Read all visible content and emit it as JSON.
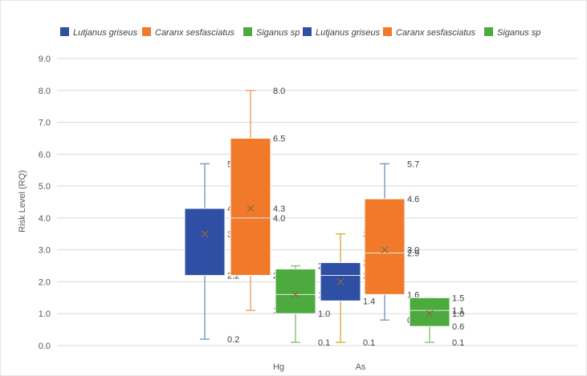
{
  "chart_data": {
    "type": "boxplot",
    "ylabel": "Risk Level (RQ)",
    "xlabel": "",
    "ylim": [
      0,
      9
    ],
    "yticks": [
      0,
      1,
      2,
      3,
      4,
      5,
      6,
      7,
      8,
      9
    ],
    "ytick_labels": [
      "0.0",
      "1.0",
      "2.0",
      "3.0",
      "4.0",
      "5.0",
      "6.0",
      "7.0",
      "8.0",
      "9.0"
    ],
    "categories": [
      "Hg",
      "As"
    ],
    "grid": true,
    "legend_position": "top",
    "legend": [
      {
        "name": "Lutjanus griseus",
        "color": "#2e4fa3"
      },
      {
        "name": "Caranx sesfasciatus",
        "color": "#f07a2a"
      },
      {
        "name": "Siganus sp",
        "color": "#4caa3e"
      },
      {
        "name": "Lutjanus griseus",
        "color": "#2e4fa3"
      },
      {
        "name": "Caranx sesfasciatus",
        "color": "#f07a2a"
      },
      {
        "name": "Siganus sp",
        "color": "#4caa3e"
      }
    ],
    "boxes": [
      {
        "category": "Hg",
        "series": "Lutjanus griseus",
        "color": "#2e4fa3",
        "whisker_color": "#7f9fc7",
        "min": 0.2,
        "q1": 2.2,
        "median": 2.2,
        "q3": 4.3,
        "max": 5.7,
        "mean": 3.5,
        "labels": [
          {
            "v": 5.7,
            "t": "5.7"
          },
          {
            "v": 4.3,
            "t": "4.3"
          },
          {
            "v": 3.5,
            "t": "3.5"
          },
          {
            "v": 2.2,
            "t": "2.2"
          },
          {
            "v": 0.2,
            "t": "0.2"
          }
        ]
      },
      {
        "category": "Hg",
        "series": "Caranx sesfasciatus",
        "color": "#f07a2a",
        "whisker_color": "#f0a470",
        "min": 1.1,
        "q1": 2.2,
        "median": 4.0,
        "q3": 6.5,
        "max": 8.0,
        "mean": 4.3,
        "labels": [
          {
            "v": 8.0,
            "t": "8.0"
          },
          {
            "v": 6.5,
            "t": "6.5"
          },
          {
            "v": 4.3,
            "t": "4.3"
          },
          {
            "v": 4.0,
            "t": "4.0"
          },
          {
            "v": 2.2,
            "t": "2.2"
          },
          {
            "v": 1.1,
            "t": "1.1"
          }
        ]
      },
      {
        "category": "Hg",
        "series": "Siganus sp",
        "color": "#4caa3e",
        "whisker_color": "#8cc280",
        "min": 0.1,
        "q1": 1.0,
        "median": 1.6,
        "q3": 2.4,
        "max": 2.5,
        "mean": 1.6,
        "labels": [
          {
            "v": 2.5,
            "t": "2.5"
          },
          {
            "v": 1.6,
            "t": "1.6"
          },
          {
            "v": 1.0,
            "t": "1.0"
          },
          {
            "v": 0.1,
            "t": "0.1"
          }
        ]
      },
      {
        "category": "As",
        "series": "Lutjanus griseus",
        "color": "#2e4fa3",
        "whisker_color": "#d9b24a",
        "min": 0.1,
        "q1": 1.4,
        "median": 2.2,
        "q3": 2.6,
        "max": 3.5,
        "mean": 2.0,
        "labels": [
          {
            "v": 3.5,
            "t": "3.5"
          },
          {
            "v": 2.6,
            "t": "2.6"
          },
          {
            "v": 2.2,
            "t": "2.2"
          },
          {
            "v": 1.4,
            "t": "1.4"
          },
          {
            "v": 0.1,
            "t": "0.1"
          }
        ]
      },
      {
        "category": "As",
        "series": "Caranx sesfasciatus",
        "color": "#f07a2a",
        "whisker_color": "#7f9fc7",
        "min": 0.8,
        "q1": 1.6,
        "median": 2.9,
        "q3": 4.6,
        "max": 5.7,
        "mean": 3.0,
        "labels": [
          {
            "v": 5.7,
            "t": "5.7"
          },
          {
            "v": 4.6,
            "t": "4.6"
          },
          {
            "v": 3.0,
            "t": "3.0"
          },
          {
            "v": 2.9,
            "t": "2.9"
          },
          {
            "v": 1.6,
            "t": "1.6"
          },
          {
            "v": 0.8,
            "t": "0.8"
          }
        ]
      },
      {
        "category": "As",
        "series": "Siganus sp",
        "color": "#4caa3e",
        "whisker_color": "#8cc280",
        "min": 0.1,
        "q1": 0.6,
        "median": 1.1,
        "q3": 1.5,
        "max": 1.5,
        "mean": 1.0,
        "labels": [
          {
            "v": 1.5,
            "t": "1.5"
          },
          {
            "v": 1.1,
            "t": "1.1"
          },
          {
            "v": 1.0,
            "t": "1.0"
          },
          {
            "v": 0.6,
            "t": "0.6"
          },
          {
            "v": 0.1,
            "t": "0.1"
          }
        ]
      }
    ]
  }
}
